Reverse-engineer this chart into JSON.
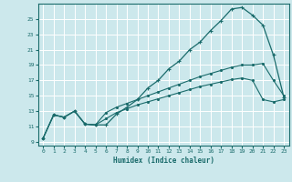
{
  "xlabel": "Humidex (Indice chaleur)",
  "bg_color": "#cce8ec",
  "grid_color": "#ffffff",
  "line_color": "#1a6b6b",
  "xlim": [
    -0.5,
    23.5
  ],
  "ylim": [
    8.5,
    27.0
  ],
  "xticks": [
    0,
    1,
    2,
    3,
    4,
    5,
    6,
    7,
    8,
    9,
    10,
    11,
    12,
    13,
    14,
    15,
    16,
    17,
    18,
    19,
    20,
    21,
    22,
    23
  ],
  "yticks": [
    9,
    11,
    13,
    15,
    17,
    19,
    21,
    23,
    25
  ],
  "line1_x": [
    0,
    1,
    2,
    3,
    4,
    5,
    6,
    7,
    8,
    9,
    10,
    11,
    12,
    13,
    14,
    15,
    16,
    17,
    18,
    19,
    20,
    21,
    22,
    23
  ],
  "line1_y": [
    9.5,
    12.5,
    12.2,
    13.0,
    11.3,
    11.2,
    11.2,
    12.6,
    13.5,
    14.5,
    16.0,
    17.0,
    18.5,
    19.5,
    21.0,
    22.0,
    23.5,
    24.8,
    26.3,
    26.5,
    25.5,
    24.2,
    20.3,
    14.8
  ],
  "line2_x": [
    0,
    1,
    2,
    3,
    4,
    5,
    6,
    7,
    8,
    9,
    10,
    11,
    12,
    13,
    14,
    15,
    16,
    17,
    18,
    19,
    20,
    21,
    22,
    23
  ],
  "line2_y": [
    9.5,
    12.5,
    12.2,
    13.0,
    11.3,
    11.2,
    12.8,
    13.5,
    14.0,
    14.5,
    15.0,
    15.5,
    16.0,
    16.5,
    17.0,
    17.5,
    17.9,
    18.3,
    18.7,
    19.0,
    19.0,
    19.2,
    17.0,
    15.0
  ],
  "line3_x": [
    0,
    1,
    2,
    3,
    4,
    5,
    6,
    7,
    8,
    9,
    10,
    11,
    12,
    13,
    14,
    15,
    16,
    17,
    18,
    19,
    20,
    21,
    22,
    23
  ],
  "line3_y": [
    9.5,
    12.5,
    12.2,
    13.0,
    11.3,
    11.2,
    12.0,
    12.8,
    13.3,
    13.8,
    14.2,
    14.6,
    15.0,
    15.4,
    15.8,
    16.2,
    16.5,
    16.8,
    17.1,
    17.3,
    17.0,
    14.5,
    14.2,
    14.5
  ]
}
